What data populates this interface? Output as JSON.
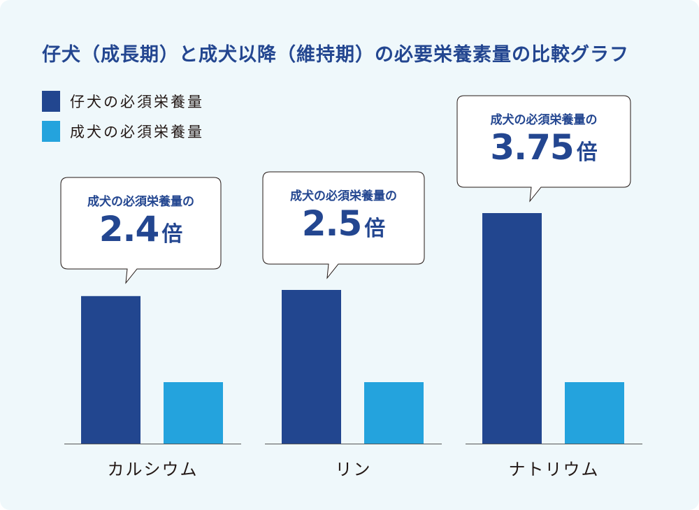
{
  "chart_data": {
    "type": "bar",
    "title": "仔犬（成長期）と成犬以降（維持期）の必要栄養素量の比較グラフ",
    "categories": [
      "カルシウム",
      "リン",
      "ナトリウム"
    ],
    "series": [
      {
        "name": "仔犬の必須栄養量",
        "values": [
          2.4,
          2.5,
          3.75
        ],
        "color": "#22468f"
      },
      {
        "name": "成犬の必須栄養量",
        "values": [
          1,
          1,
          1
        ],
        "color": "#24a3dd"
      }
    ],
    "ylim": [
      0,
      4
    ],
    "grid": false,
    "legend": "top-left",
    "annotations": [
      {
        "label": "成犬の必須栄養量の",
        "value": "2.4",
        "unit": "倍"
      },
      {
        "label": "成犬の必須栄養量の",
        "value": "2.5",
        "unit": "倍"
      },
      {
        "label": "成犬の必須栄養量の",
        "value": "3.75",
        "unit": "倍"
      }
    ]
  },
  "colors": {
    "background": "#eff8fb",
    "title": "#234690",
    "axis": "#555555"
  }
}
